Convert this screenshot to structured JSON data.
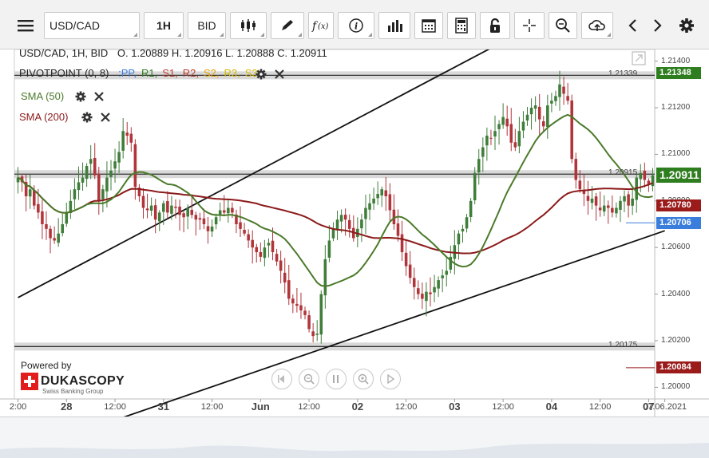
{
  "toolbar": {
    "menu_icon": "hamburger-icon",
    "symbol": "USD/CAD",
    "timeframe": "1H",
    "price_side": "BID",
    "tools": [
      "candles-icon",
      "pencil-icon",
      "function-icon",
      "info-icon",
      "bar-chart-icon",
      "calendar-icon",
      "calculator-icon",
      "lock-icon",
      "crosshair-icon",
      "zoom-icon",
      "upload-icon",
      "chevron-left-icon",
      "chevron-right-icon",
      "gear-icon"
    ]
  },
  "legend": {
    "title": "USD/CAD, 1H, BID",
    "ohlc": "O. 1.20889 H. 1.20916 L. 1.20888 C. 1.20911",
    "pivot": {
      "name": "PIVOTPOINT (0, 8)",
      "sep": ":",
      "items": [
        {
          "label": "PP",
          "color": "#3b7ddd"
        },
        {
          "label": "R1",
          "color": "#2e7d1f"
        },
        {
          "label": "S1",
          "color": "#c0392b"
        },
        {
          "label": "R2",
          "color": "#c0392b"
        },
        {
          "label": "S2",
          "color": "#e6a100"
        },
        {
          "label": "R3",
          "color": "#d4b800"
        },
        {
          "label": "S3",
          "color": "#d4b800"
        }
      ]
    },
    "sma50": {
      "label": "SMA (50)",
      "color": "#4a7a2a"
    },
    "sma200": {
      "label": "SMA (200)",
      "color": "#8b1a1a"
    }
  },
  "price_tags": [
    {
      "value": "1.21348",
      "color": "#2e7d1f",
      "price": 1.21348,
      "size": "normal"
    },
    {
      "value": "1.20911",
      "color": "#2e7d1f",
      "price": 1.20911,
      "size": "big"
    },
    {
      "value": "1.20780",
      "color": "#9b1b1b",
      "price": 1.2078,
      "size": "normal"
    },
    {
      "value": "1.20706",
      "color": "#3b7ddd",
      "price": 1.20706,
      "size": "normal"
    },
    {
      "value": "1.20084",
      "color": "#9b1b1b",
      "price": 1.20084,
      "size": "normal"
    }
  ],
  "line_labels": [
    {
      "text": "1.21339",
      "price": 1.21339
    },
    {
      "text": "1.20915",
      "price": 1.20915
    },
    {
      "text": "1.20175",
      "price": 1.20175
    }
  ],
  "branding": {
    "powered": "Powered by",
    "name": "DUKASCOPY",
    "sub": "Swiss Banking Group"
  },
  "chart_data": {
    "type": "candlestick",
    "symbol": "USD/CAD",
    "interval": "1H",
    "ylim": [
      1.1995,
      1.2145
    ],
    "y_ticks": [
      "1.21400",
      "1.21200",
      "1.21000",
      "1.20800",
      "1.20600",
      "1.20400",
      "1.20200",
      "1.20000"
    ],
    "y_tick_values": [
      1.214,
      1.212,
      1.21,
      1.208,
      1.206,
      1.204,
      1.202,
      1.2
    ],
    "x_ticks": [
      {
        "label": "2:00",
        "bar": 0,
        "bold": false
      },
      {
        "label": "28",
        "bar": 12,
        "bold": true
      },
      {
        "label": "12:00",
        "bar": 24,
        "bold": false
      },
      {
        "label": "31",
        "bar": 36,
        "bold": true
      },
      {
        "label": "12:00",
        "bar": 48,
        "bold": false
      },
      {
        "label": "Jun",
        "bar": 60,
        "bold": true
      },
      {
        "label": "12:00",
        "bar": 72,
        "bold": false
      },
      {
        "label": "02",
        "bar": 84,
        "bold": true
      },
      {
        "label": "12:00",
        "bar": 96,
        "bold": false
      },
      {
        "label": "03",
        "bar": 108,
        "bold": true
      },
      {
        "label": "12:00",
        "bar": 120,
        "bold": false
      },
      {
        "label": "04",
        "bar": 132,
        "bold": true
      },
      {
        "label": "12:00",
        "bar": 144,
        "bold": false
      },
      {
        "label": "07",
        "bar": 156,
        "bold": true
      },
      {
        "label": "07.06.2021",
        "bar": 160,
        "bold": false
      }
    ],
    "horizontal_levels": [
      1.21339,
      1.20915,
      1.20175
    ],
    "close": [
      1.209,
      1.2088,
      1.2082,
      1.2085,
      1.2078,
      1.2075,
      1.207,
      1.2068,
      1.2064,
      1.2063,
      1.2066,
      1.207,
      1.2075,
      1.208,
      1.2085,
      1.2088,
      1.209,
      1.2095,
      1.2098,
      1.2091,
      1.208,
      1.2085,
      1.209,
      1.2093,
      1.2097,
      1.2101,
      1.211,
      1.2108,
      1.2105,
      1.2086,
      1.2082,
      1.2077,
      1.2076,
      1.2078,
      1.2072,
      1.2075,
      1.2079,
      1.2075,
      1.2078,
      1.2077,
      1.2074,
      1.2073,
      1.2077,
      1.2074,
      1.2072,
      1.2072,
      1.207,
      1.2067,
      1.2069,
      1.2073,
      1.2076,
      1.2075,
      1.2077,
      1.2075,
      1.207,
      1.2068,
      1.2066,
      1.2063,
      1.206,
      1.2058,
      1.2056,
      1.206,
      1.2062,
      1.2058,
      1.2054,
      1.205,
      1.2045,
      1.2038,
      1.2036,
      1.2035,
      1.2033,
      1.2031,
      1.2025,
      1.2022,
      1.2023,
      1.204,
      1.2055,
      1.2063,
      1.2068,
      1.2072,
      1.2074,
      1.2072,
      1.2068,
      1.2064,
      1.2068,
      1.2072,
      1.2077,
      1.2079,
      1.2081,
      1.2083,
      1.2085,
      1.2082,
      1.2076,
      1.207,
      1.2065,
      1.2058,
      1.2052,
      1.2047,
      1.2043,
      1.204,
      1.2038,
      1.2041,
      1.204,
      1.2043,
      1.2046,
      1.2048,
      1.205,
      1.2056,
      1.2061,
      1.2066,
      1.2068,
      1.2073,
      1.208,
      1.2092,
      1.2098,
      1.2103,
      1.2108,
      1.2107,
      1.211,
      1.2113,
      1.2116,
      1.2112,
      1.2105,
      1.2103,
      1.211,
      1.2114,
      1.2117,
      1.212,
      1.2121,
      1.2115,
      1.2112,
      1.2121,
      1.2123,
      1.2125,
      1.213,
      1.2126,
      1.2123,
      1.2098,
      1.2089,
      1.2085,
      1.2083,
      1.208,
      1.2081,
      1.2078,
      1.2076,
      1.2078,
      1.2077,
      1.2075,
      1.2077,
      1.208,
      1.2082,
      1.2078,
      1.2081,
      1.209,
      1.2092,
      1.2089,
      1.2087,
      1.2091
    ]
  }
}
